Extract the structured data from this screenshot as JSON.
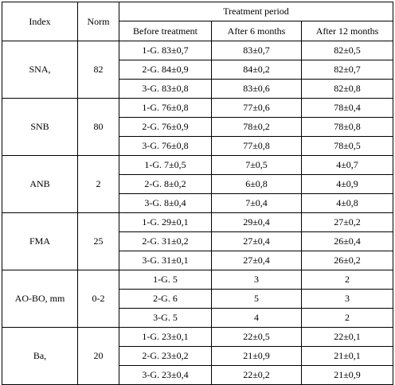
{
  "header": {
    "index": "Index",
    "norm": "Norm",
    "period": "Treatment period",
    "before": "Before treatment",
    "after6": "After 6 months",
    "after12": "After 12 months"
  },
  "groups": [
    {
      "index": "SNA,",
      "norm": "82",
      "rows": [
        {
          "before": "1-G. 83±0,7",
          "after6": "83±0,7",
          "after12": "82±0,5"
        },
        {
          "before": "2-G. 84±0,9",
          "after6": "84±0,2",
          "after12": "82±0,7"
        },
        {
          "before": "3-G. 83±0,8",
          "after6": "83±0,6",
          "after12": "82±0,8"
        }
      ]
    },
    {
      "index": "SNB",
      "norm": "80",
      "rows": [
        {
          "before": "1-G. 76±0,8",
          "after6": "77±0,6",
          "after12": "78±0,4"
        },
        {
          "before": "2-G. 76±0,9",
          "after6": "78±0,2",
          "after12": "78±0,8"
        },
        {
          "before": "3-G. 76±0,8",
          "after6": "77±0,8",
          "after12": "78±0,5"
        }
      ]
    },
    {
      "index": "ANB",
      "norm": "2",
      "rows": [
        {
          "before": "1-G. 7±0,5",
          "after6": "7±0,5",
          "after12": "4±0,7"
        },
        {
          "before": "2-G. 8±0,2",
          "after6": "6±0,8",
          "after12": "4±0,9"
        },
        {
          "before": "3-G. 8±0,4",
          "after6": "7±0,4",
          "after12": "4±0,8"
        }
      ]
    },
    {
      "index": "FMA",
      "norm": "25",
      "rows": [
        {
          "before": "1-G. 29±0,1",
          "after6": "29±0,4",
          "after12": "27±0,2"
        },
        {
          "before": "2-G. 31±0,2",
          "after6": "27±0,4",
          "after12": "26±0,4"
        },
        {
          "before": "3-G. 31±0,1",
          "after6": "27±0,4",
          "after12": "26±0,2"
        }
      ]
    },
    {
      "index": "AO-BO, mm",
      "norm": "0-2",
      "rows": [
        {
          "before": "1-G. 5",
          "after6": "3",
          "after12": "2"
        },
        {
          "before": "2-G. 6",
          "after6": "5",
          "after12": "3"
        },
        {
          "before": "3-G. 5",
          "after6": "4",
          "after12": "2"
        }
      ]
    },
    {
      "index": "Ba,",
      "norm": "20",
      "rows": [
        {
          "before": "1-G. 23±0,1",
          "after6": "22±0,5",
          "after12": "22±0,1"
        },
        {
          "before": "2-G. 23±0,2",
          "after6": "21±0,9",
          "after12": "21±0,1"
        },
        {
          "before": "3-G. 23±0,4",
          "after6": "22±0,2",
          "after12": "21±0,9"
        }
      ]
    }
  ]
}
